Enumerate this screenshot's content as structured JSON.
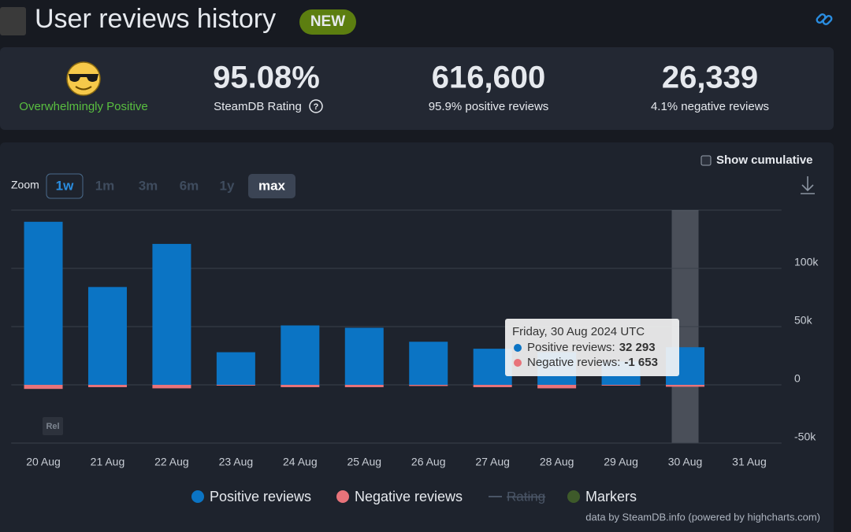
{
  "header": {
    "title": "User reviews history",
    "badge": "NEW"
  },
  "stats": {
    "verdict": "Overwhelmingly Positive",
    "rating": "95.08%",
    "rating_label": "SteamDB Rating",
    "rating_help": "?",
    "positive": "616,600",
    "positive_label": "95.9% positive reviews",
    "negative": "26,339",
    "negative_label": "4.1% negative reviews"
  },
  "controls": {
    "zoom_label": "Zoom",
    "zoom_options": [
      "1w",
      "1m",
      "3m",
      "6m",
      "1y",
      "max"
    ],
    "cumulative": "Show cumulative",
    "rel": "Rel"
  },
  "chart_data": {
    "type": "bar",
    "categories": [
      "20 Aug",
      "21 Aug",
      "22 Aug",
      "23 Aug",
      "24 Aug",
      "25 Aug",
      "26 Aug",
      "27 Aug",
      "28 Aug",
      "29 Aug",
      "30 Aug",
      "31 Aug"
    ],
    "series": [
      {
        "name": "Positive reviews",
        "color": "#0b74c4",
        "values": [
          140000,
          84000,
          121000,
          28000,
          51000,
          49000,
          37000,
          31000,
          28000,
          20000,
          32293,
          null
        ]
      },
      {
        "name": "Negative reviews",
        "color": "#e8737a",
        "values": [
          -3500,
          -2000,
          -3000,
          -500,
          -2000,
          -2000,
          -1000,
          -2000,
          -3000,
          -500,
          -1653,
          null
        ]
      }
    ],
    "legend_extra": [
      {
        "name": "Rating",
        "color": "#4a5566",
        "hidden": true
      },
      {
        "name": "Markers",
        "color": "#3e5a2a"
      }
    ],
    "ylim": [
      -50000,
      150000
    ],
    "yticks": [
      {
        "value": -50000,
        "label": "-50k"
      },
      0,
      {
        "value": 50000,
        "label": "50k"
      },
      {
        "value": 100000,
        "label": "100k"
      }
    ],
    "grid": true,
    "highlight": 10,
    "tooltip": {
      "title": "Friday, 30 Aug 2024 UTC",
      "lines": [
        {
          "label": "Positive reviews:",
          "value": "32 293"
        },
        {
          "label": "Negative reviews:",
          "value": "-1 653"
        }
      ]
    },
    "credits": "data by SteamDB.info (powered by highcharts.com)"
  }
}
